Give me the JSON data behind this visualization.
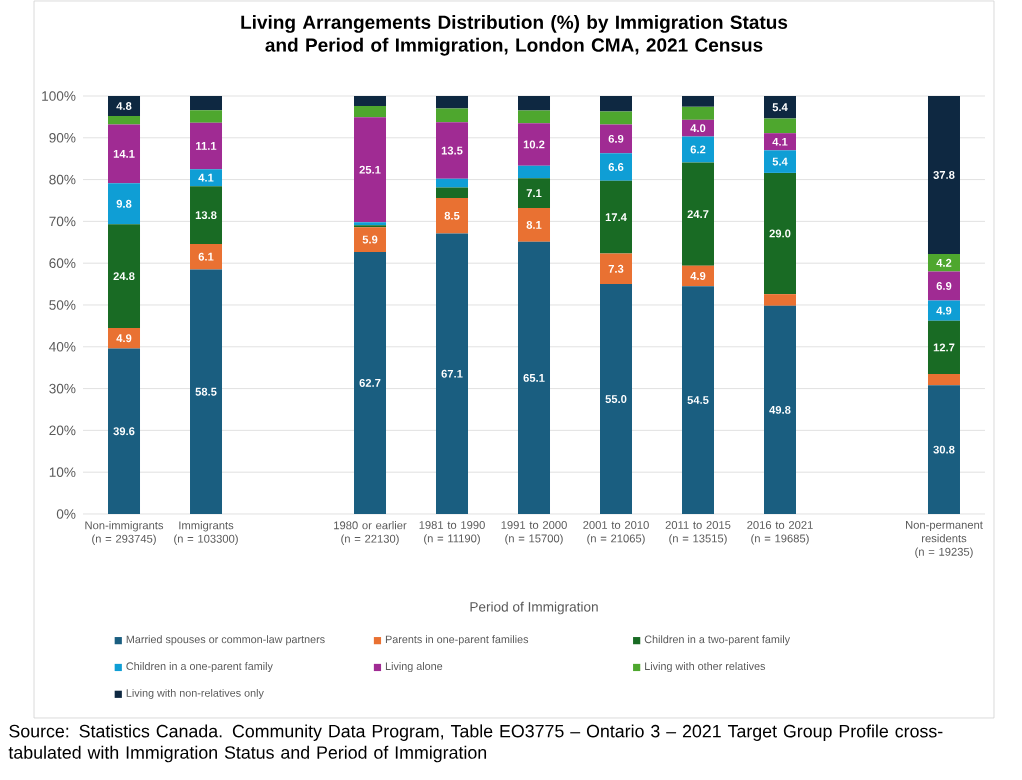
{
  "chart_data": {
    "type": "bar",
    "stacked": true,
    "title": "Living Arrangements Distribution (%) by Immigration Status and Period of Immigration, London CMA, 2021 Census",
    "xlabel": "Period of Immigration",
    "categories": [
      "Non-immigrants (n = 293745)",
      "Immigrants (n = 103300)",
      null,
      "1980 or earlier (n = 22130)",
      "1981 to 1990 (n = 11190)",
      "1991 to 2000 (n = 15700)",
      "2001 to 2010 (n = 21065)",
      "2011 to 2015 (n = 13515)",
      "2016 to 2021 (n = 19685)",
      null,
      "Non-permanent residents (n = 19235)"
    ],
    "ylim": [
      0,
      100
    ],
    "yticks": [
      {
        "value": 0,
        "label": "0%"
      },
      {
        "value": 10,
        "label": "10%"
      },
      {
        "value": 20,
        "label": "20%"
      },
      {
        "value": 30,
        "label": "30%"
      },
      {
        "value": 40,
        "label": "40%"
      },
      {
        "value": 50,
        "label": "50%"
      },
      {
        "value": 60,
        "label": "60%"
      },
      {
        "value": 70,
        "label": "70%"
      },
      {
        "value": 80,
        "label": "80%"
      },
      {
        "value": 90,
        "label": "90%"
      },
      {
        "value": 100,
        "label": "100%"
      }
    ],
    "grid": "y",
    "legend": "bottom",
    "series": [
      {
        "name": "Married spouses or common-law partners",
        "color": "#1a5e80",
        "values": [
          39.6,
          58.5,
          null,
          62.7,
          67.1,
          65.1,
          55.0,
          54.5,
          49.8,
          null,
          30.8
        ],
        "value_labels": [
          "39.6",
          "58.5",
          null,
          "62.7",
          "67.1",
          "65.1",
          "55.0",
          "54.5",
          "49.8",
          null,
          "30.8"
        ]
      },
      {
        "name": "Parents in one-parent families",
        "color": "#e97132",
        "values": [
          4.9,
          6.1,
          null,
          5.9,
          8.5,
          8.1,
          7.3,
          4.9,
          2.8,
          null,
          2.7
        ],
        "value_labels": [
          "4.9",
          "6.1",
          null,
          "5.9",
          "8.5",
          "8.1",
          "7.3",
          "4.9",
          null,
          null,
          null
        ]
      },
      {
        "name": "Children in a two-parent family",
        "color": "#196b24",
        "values": [
          24.8,
          13.8,
          null,
          0.5,
          2.5,
          7.1,
          17.4,
          24.7,
          29.0,
          null,
          12.7
        ],
        "value_labels": [
          "24.8",
          "13.8",
          null,
          null,
          null,
          "7.1",
          "17.4",
          "24.7",
          "29.0",
          null,
          "12.7"
        ]
      },
      {
        "name": "Children in a one-parent family",
        "color": "#0f9ed5",
        "values": [
          9.8,
          4.1,
          null,
          0.7,
          2.1,
          3.0,
          6.6,
          6.2,
          5.4,
          null,
          4.9
        ],
        "value_labels": [
          "9.8",
          "4.1",
          null,
          null,
          null,
          null,
          "6.6",
          "6.2",
          "5.4",
          null,
          "4.9"
        ]
      },
      {
        "name": "Living alone",
        "color": "#a02b93",
        "values": [
          14.1,
          11.1,
          null,
          25.1,
          13.5,
          10.2,
          6.9,
          4.0,
          4.1,
          null,
          6.9
        ],
        "value_labels": [
          "14.1",
          "11.1",
          null,
          "25.1",
          "13.5",
          "10.2",
          "6.9",
          "4.0",
          "4.1",
          null,
          "6.9"
        ]
      },
      {
        "name": "Living with other relatives",
        "color": "#4ea72e",
        "values": [
          2.0,
          3.0,
          null,
          2.7,
          3.3,
          3.0,
          3.1,
          3.1,
          3.5,
          null,
          4.2
        ],
        "value_labels": [
          null,
          null,
          null,
          null,
          null,
          null,
          null,
          null,
          null,
          null,
          "4.2"
        ]
      },
      {
        "name": "Living with non-relatives only",
        "color": "#0e2841",
        "values": [
          4.8,
          3.4,
          null,
          2.4,
          3.0,
          3.5,
          3.7,
          2.6,
          5.4,
          null,
          37.8
        ],
        "value_labels": [
          "4.8",
          null,
          null,
          null,
          null,
          null,
          null,
          null,
          "5.4",
          null,
          "37.8"
        ]
      }
    ],
    "annotations": [
      "Source: Statistics Canada. Community Data Program, Table EO3775 – Ontario 3 – 2021 Target Group Profile cross-tabulated with Immigration Status and Period of Immigration"
    ]
  }
}
